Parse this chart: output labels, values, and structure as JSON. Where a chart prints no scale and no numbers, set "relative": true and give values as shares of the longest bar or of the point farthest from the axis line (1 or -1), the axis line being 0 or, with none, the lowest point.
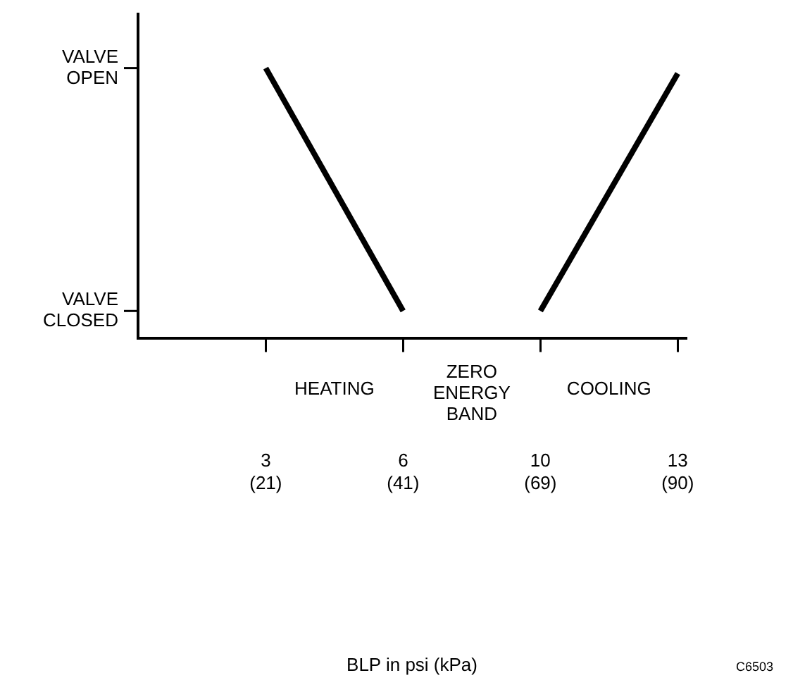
{
  "chart_data": {
    "type": "line",
    "categories": [
      "3 (21)",
      "6 (41)",
      "10 (69)",
      "13 (90)"
    ],
    "series": [
      {
        "color": "#000000",
        "values": [
          1,
          0.1,
          null,
          null
        ]
      },
      {
        "color": "#000000",
        "values": [
          null,
          null,
          0.1,
          0.98
        ]
      }
    ],
    "relative": true,
    "annotations": [
      "HEATING",
      "ZERO ENERGY BAND",
      "COOLING",
      "VALVE OPEN",
      "VALVE CLOSED",
      "BLP in psi (kPa)",
      "C6503"
    ],
    "grid": false,
    "legend": false,
    "marker": "none",
    "line_style": "solid"
  }
}
